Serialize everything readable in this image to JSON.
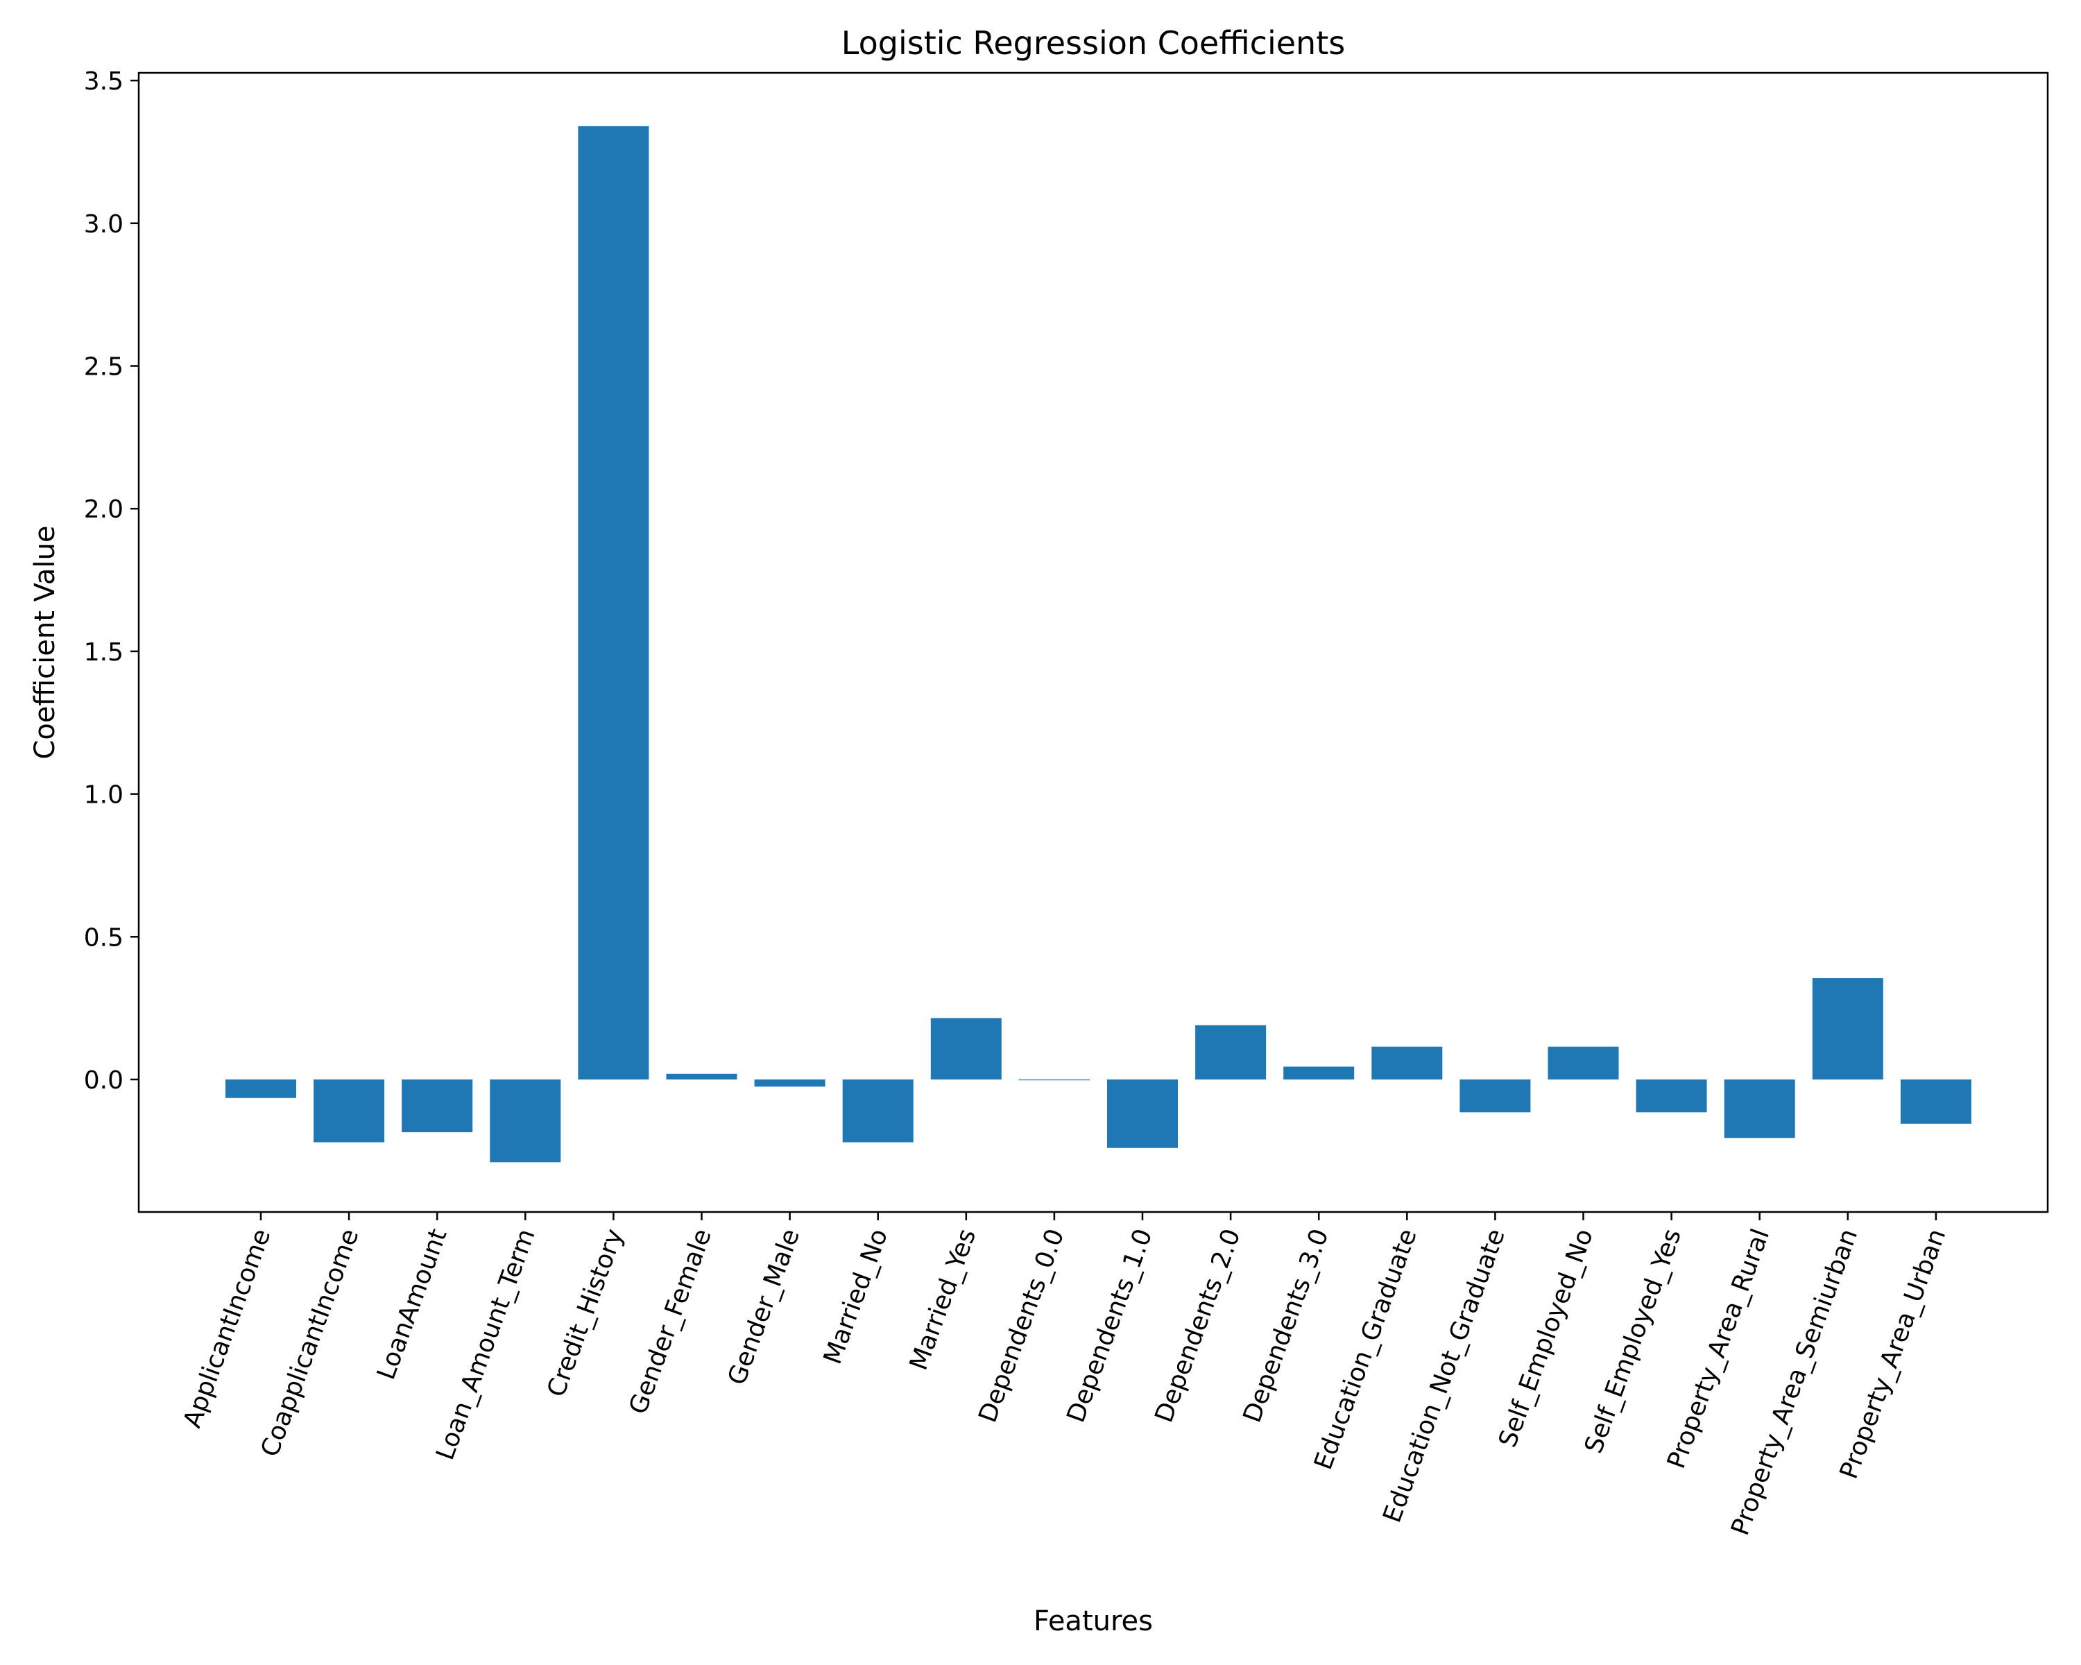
{
  "chart_data": {
    "type": "bar",
    "title": "Logistic Regression Coefficients",
    "xlabel": "Features",
    "ylabel": "Coefficient Value",
    "ylim": [
      -0.47,
      3.5
    ],
    "yticks": [
      0.0,
      0.5,
      1.0,
      1.5,
      2.0,
      2.5,
      3.0,
      3.5
    ],
    "ytick_labels": [
      "0.0",
      "0.5",
      "1.0",
      "1.5",
      "2.0",
      "2.5",
      "3.0",
      "3.5"
    ],
    "grid": false,
    "bar_color": "#1f77b4",
    "categories": [
      "ApplicantIncome",
      "CoapplicantIncome",
      "LoanAmount",
      "Loan_Amount_Term",
      "Credit_History",
      "Gender_Female",
      "Gender_Male",
      "Married_No",
      "Married_Yes",
      "Dependents_0.0",
      "Dependents_1.0",
      "Dependents_2.0",
      "Dependents_3.0",
      "Education_Graduate",
      "Education_Not_Graduate",
      "Self_Employed_No",
      "Self_Employed_Yes",
      "Property_Area_Rural",
      "Property_Area_Semiurban",
      "Property_Area_Urban"
    ],
    "values": [
      -0.065,
      -0.22,
      -0.185,
      -0.29,
      3.34,
      0.02,
      -0.025,
      -0.22,
      0.215,
      -0.003,
      -0.24,
      0.19,
      0.045,
      0.115,
      -0.115,
      0.115,
      -0.115,
      -0.205,
      0.355,
      -0.155
    ]
  }
}
